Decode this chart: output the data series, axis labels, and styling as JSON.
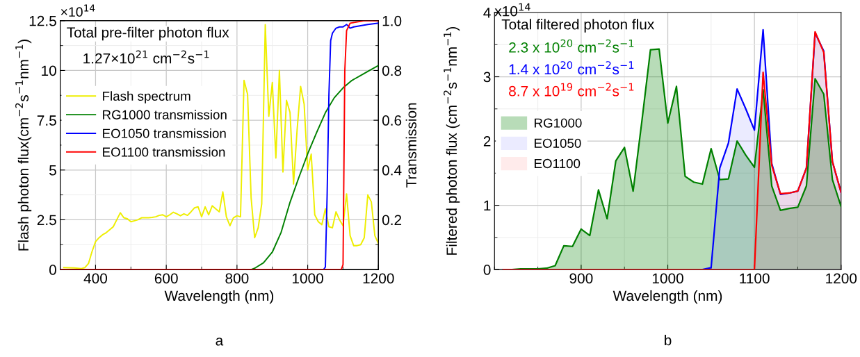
{
  "chart_data": [
    {
      "type": "line",
      "xlabel": "Wavelength (nm)",
      "ylabel": "Flash photon flux(cm$^{−2}$s$^{−1}$nm$^{−1}$)",
      "y2label": "Transmission",
      "xlim": [
        300,
        1200
      ],
      "xticks": [
        400,
        600,
        800,
        1000,
        1200
      ],
      "ylim": [
        0,
        12.5
      ],
      "yticks": [
        0,
        2.5,
        5,
        7.5,
        10,
        12.5
      ],
      "y2lim": [
        0,
        1
      ],
      "y2ticks": [
        0.2,
        0.4,
        0.6,
        0.8,
        {
          "value": 1,
          "label": "1.0"
        }
      ],
      "grid": true,
      "legend": "left",
      "line_style": "solid",
      "marker": "none",
      "annotations": [
        "×10$^{14}$",
        "Total pre-filter photon flux",
        "1.27×10$^{21}$ cm$^{−2}$s$^{−1}$",
        "a"
      ],
      "series": [
        {
          "name": "Flash spectrum",
          "color": "#eeee00",
          "x": [
            310,
            340,
            360,
            370,
            380,
            390,
            400,
            410,
            420,
            430,
            440,
            450,
            460,
            470,
            480,
            490,
            500,
            510,
            520,
            530,
            550,
            560,
            570,
            580,
            590,
            600,
            610,
            620,
            630,
            640,
            650,
            660,
            670,
            680,
            690,
            700,
            710,
            720,
            730,
            740,
            750,
            760,
            770,
            780,
            790,
            800,
            810,
            820,
            830,
            840,
            850,
            860,
            870,
            880,
            890,
            900,
            910,
            920,
            930,
            940,
            950,
            960,
            970,
            980,
            990,
            1000,
            1010,
            1020,
            1030,
            1040,
            1050,
            1060,
            1070,
            1080,
            1090,
            1100,
            1110,
            1120,
            1130,
            1140,
            1150,
            1160,
            1170,
            1180,
            1190,
            1200
          ],
          "values": [
            0.1,
            0.08,
            0.05,
            0.1,
            0.3,
            0.9,
            1.4,
            1.6,
            1.75,
            1.85,
            2.0,
            2.15,
            2.5,
            2.85,
            2.6,
            2.55,
            2.4,
            2.45,
            2.5,
            2.6,
            2.6,
            2.62,
            2.65,
            2.72,
            2.75,
            2.65,
            2.75,
            2.88,
            2.8,
            2.7,
            2.8,
            2.72,
            2.9,
            3.1,
            3.15,
            2.65,
            3.15,
            2.75,
            3.2,
            3.05,
            2.9,
            3.9,
            2.65,
            2.2,
            2.6,
            2.7,
            2.65,
            9.5,
            8.8,
            3.6,
            1.6,
            2.1,
            3.3,
            12.3,
            7.7,
            9.4,
            5.6,
            10.0,
            4.9,
            8.5,
            7.9,
            4.3,
            7.0,
            9.2,
            8.3,
            5.0,
            5.8,
            2.75,
            2.4,
            2.25,
            3.05,
            2.15,
            2.1,
            2.9,
            2.5,
            2.2,
            3.8,
            1.7,
            1.2,
            1.2,
            1.25,
            1.6,
            3.75,
            3.4,
            1.7,
            1.3
          ]
        },
        {
          "name": "RG1000 transmission",
          "color": "#008000",
          "axis": "y2",
          "x": [
            300,
            840,
            850,
            875,
            900,
            925,
            950,
            975,
            1000,
            1025,
            1050,
            1075,
            1100,
            1125,
            1150,
            1175,
            1200
          ],
          "values": [
            0,
            0,
            0.005,
            0.027,
            0.07,
            0.15,
            0.27,
            0.37,
            0.465,
            0.55,
            0.63,
            0.69,
            0.73,
            0.76,
            0.78,
            0.8,
            0.82
          ]
        },
        {
          "name": "EO1050 transmission",
          "color": "#0000ff",
          "axis": "y2",
          "x": [
            300,
            1045,
            1050,
            1055,
            1060,
            1065,
            1070,
            1080,
            1090,
            1100,
            1110,
            1120,
            1130,
            1150,
            1170,
            1200
          ],
          "values": [
            0,
            0,
            0.01,
            0.3,
            0.7,
            0.92,
            0.95,
            0.97,
            0.975,
            0.975,
            0.985,
            0.97,
            0.975,
            0.98,
            0.985,
            0.99
          ]
        },
        {
          "name": "EO1100 transmission",
          "color": "#ff0000",
          "axis": "y2",
          "x": [
            300,
            1095,
            1100,
            1105,
            1110,
            1120,
            1140,
            1160,
            1200
          ],
          "values": [
            0,
            0,
            0.02,
            0.8,
            0.96,
            0.99,
            0.995,
            1.0,
            1.0
          ]
        }
      ]
    },
    {
      "type": "area",
      "xlabel": "Wavelength (nm)",
      "ylabel": "Filtered photon flux (cm$^{−2}$s$^{−1}$nm$^{−1}$)",
      "xlim": [
        800,
        1200
      ],
      "xticks": [
        900,
        1000,
        1100,
        1200
      ],
      "ylim": [
        0,
        4
      ],
      "yticks": [
        0,
        1,
        2,
        3,
        4
      ],
      "grid": true,
      "legend": "left",
      "annotations": [
        "x10$^{14}$",
        "Total filtered photon flux",
        "2.3 x 10$^{20}$ cm$^{−2}$s$^{−1}$",
        "1.4 x 10$^{20}$ cm$^{−2}$s$^{−1}$",
        "8.7 x 10$^{19}$ cm$^{−2}$s$^{−1}$",
        "b"
      ],
      "series": [
        {
          "name": "RG1000",
          "color": "#008000",
          "x": [
            810,
            820,
            830,
            840,
            850,
            860,
            870,
            880,
            890,
            900,
            910,
            920,
            930,
            940,
            950,
            960,
            970,
            980,
            990,
            1000,
            1010,
            1020,
            1030,
            1040,
            1050,
            1060,
            1070,
            1080,
            1090,
            1100,
            1110,
            1120,
            1130,
            1140,
            1150,
            1160,
            1170,
            1180,
            1190,
            1200
          ],
          "values": [
            0,
            0,
            0.01,
            0.01,
            0.01,
            0.02,
            0.06,
            0.37,
            0.36,
            0.63,
            0.53,
            1.24,
            0.79,
            1.69,
            1.9,
            1.22,
            2.3,
            3.42,
            3.43,
            2.28,
            2.85,
            1.45,
            1.36,
            1.33,
            1.88,
            1.4,
            1.41,
            2.0,
            1.78,
            1.59,
            2.8,
            1.3,
            0.92,
            0.95,
            0.97,
            1.3,
            2.97,
            2.73,
            1.4,
            0.98
          ]
        },
        {
          "name": "EO1050",
          "color": "#0000ff",
          "x": [
            810,
            1040,
            1050,
            1060,
            1070,
            1080,
            1090,
            1100,
            1110,
            1120,
            1130,
            1140,
            1150,
            1160,
            1170,
            1180,
            1190,
            1200
          ],
          "values": [
            0,
            0,
            0.03,
            1.58,
            1.97,
            2.81,
            2.5,
            2.17,
            3.73,
            1.65,
            1.17,
            1.19,
            1.22,
            1.58,
            3.68,
            3.4,
            1.68,
            1.2
          ]
        },
        {
          "name": "EO1100",
          "color": "#ff0000",
          "x": [
            810,
            1100,
            1110,
            1120,
            1130,
            1140,
            1150,
            1160,
            1170,
            1180,
            1190,
            1200
          ],
          "values": [
            0,
            0,
            3.07,
            1.62,
            1.18,
            1.19,
            1.22,
            1.58,
            3.7,
            3.38,
            1.68,
            1.2
          ]
        }
      ]
    }
  ]
}
